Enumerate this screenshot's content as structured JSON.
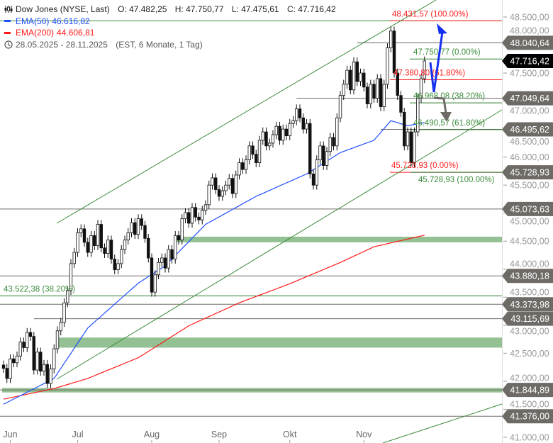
{
  "legend": {
    "instrument": "Dow Jones (NYSE, Last)",
    "open": "O: 47.482,25",
    "high": "H: 47.750,77",
    "low": "L: 47.475,61",
    "close": "C: 47.716,42",
    "ema50_label": "EMA(50)",
    "ema50_value": "46.616,82",
    "ema200_label": "EMA(200)",
    "ema200_value": "44.606,81",
    "range": "28.05.2025 - 28.11.2025",
    "range_info": "(EST, 6 Monate, 1 Tag)",
    "icons": [
      "candlestick-icon",
      "clock-icon"
    ]
  },
  "colors": {
    "ema50": "#1f4fff",
    "ema200": "#ff1a1a",
    "fib_green": "#3c8c3c",
    "fib_red": "#ff2020",
    "zone": "#93c193",
    "level": "#6e6a66",
    "arrow_up": "#1530f0",
    "arrow_down": "#6e6a66"
  },
  "chart_data": {
    "type": "candlestick",
    "ylim": [
      41000,
      48700
    ],
    "grid": false,
    "y_ticks": [
      "48.500,00",
      "48.000,00",
      "47.500,00",
      "47.000,00",
      "46.500,00",
      "46.000,00",
      "45.500,00",
      "45.000,00",
      "44.500,00",
      "44.000,00",
      "43.500,00",
      "43.000,00",
      "42.500,00",
      "42.000,00",
      "41.500,00",
      "41.000,00"
    ],
    "y_tick_values": [
      48500,
      48000,
      47500,
      47000,
      46500,
      46000,
      45500,
      45000,
      44500,
      44000,
      43500,
      43000,
      42500,
      42000,
      41500,
      41000
    ],
    "x_ticks": [
      {
        "label": "Jun",
        "index": 2
      },
      {
        "label": "Jul",
        "index": 22
      },
      {
        "label": "Aug",
        "index": 44
      },
      {
        "label": "Sep",
        "index": 64
      },
      {
        "label": "Okt",
        "index": 85
      },
      {
        "label": "Nov",
        "index": 107
      }
    ],
    "closes": [
      42230,
      42050,
      42400,
      42330,
      42450,
      42700,
      42600,
      42870,
      42800,
      42200,
      42520,
      42180,
      42300,
      41960,
      42220,
      42580,
      42900,
      43050,
      43400,
      43620,
      44100,
      44300,
      44650,
      44720,
      44480,
      44300,
      44600,
      44420,
      44800,
      44380,
      44280,
      44520,
      44180,
      43990,
      44100,
      44350,
      44520,
      44650,
      44830,
      44620,
      44900,
      44780,
      44550,
      44200,
      43590,
      43900,
      44120,
      44200,
      44020,
      44350,
      44180,
      44600,
      44520,
      44900,
      45010,
      44820,
      45100,
      44930,
      44880,
      45050,
      45150,
      45500,
      45630,
      45420,
      45300,
      45400,
      45500,
      45620,
      45350,
      45680,
      45900,
      45780,
      45950,
      46200,
      46050,
      45900,
      46300,
      46450,
      46200,
      46250,
      46400,
      46550,
      46300,
      46500,
      46380,
      46600,
      46650,
      46860,
      46700,
      46500,
      46600,
      45700,
      45500,
      45950,
      46200,
      45850,
      46100,
      46350,
      46200,
      46700,
      47100,
      47300,
      47550,
      47200,
      47700,
      47350,
      47500,
      47250,
      46950,
      47300,
      47050,
      47400,
      46900,
      47300,
      47950,
      48250,
      47500,
      47100,
      46800,
      46200,
      46450,
      45900,
      46450,
      47050,
      47400,
      47716.42
    ],
    "ema50": [
      [
        0,
        41590
      ],
      [
        15,
        42050
      ],
      [
        25,
        42950
      ],
      [
        40,
        43750
      ],
      [
        48,
        44060
      ],
      [
        60,
        44800
      ],
      [
        75,
        45300
      ],
      [
        90,
        45700
      ],
      [
        100,
        46080
      ],
      [
        110,
        46300
      ],
      [
        115,
        46650
      ],
      [
        120,
        46560
      ],
      [
        125,
        46616.82
      ]
    ],
    "ema200": [
      [
        0,
        41680
      ],
      [
        15,
        41870
      ],
      [
        25,
        42050
      ],
      [
        40,
        42420
      ],
      [
        55,
        42990
      ],
      [
        70,
        43400
      ],
      [
        85,
        43740
      ],
      [
        100,
        44120
      ],
      [
        110,
        44400
      ],
      [
        125,
        44606.81
      ]
    ],
    "levels": [
      {
        "value": 48040.64,
        "label": "48.040,64",
        "from": 105
      },
      {
        "value": 47049.64,
        "label": "47.049,64",
        "from": 87
      },
      {
        "value": 46495.62,
        "label": "46.495,62",
        "from": 112
      },
      {
        "value": 45073.63,
        "label": "45.073,63",
        "from": 0
      },
      {
        "value": 43880.18,
        "label": "43.880,18",
        "from": 0
      },
      {
        "value": 43373.98,
        "label": "43.373,98",
        "from": 0
      },
      {
        "value": 43115.69,
        "label": "43.115,69",
        "from": 9
      },
      {
        "value": 41844.89,
        "label": "41.844,89",
        "from": 0
      },
      {
        "value": 41376.0,
        "label": "41.376,00",
        "from": 0
      }
    ],
    "last_price": {
      "value": 47716.42,
      "label": "47.716,42"
    },
    "low_marker": {
      "value": 45728.93,
      "label": "45.728,93"
    },
    "fib_red": [
      {
        "value": 48431.57,
        "label": "48.431,57 (100.00%)"
      },
      {
        "value": 47380.8,
        "label": "47.380,80 (61.80%)"
      },
      {
        "value": 45728.93,
        "label": "45.728,93 (0.00%)"
      }
    ],
    "fib_green": [
      {
        "value": 47750.77,
        "label": "47.750,77 (0.00%)"
      },
      {
        "value": 46968.08,
        "label": "46.968,08 (38.20%)"
      },
      {
        "value": 46490.57,
        "label": "46.490,57 (61.80%)"
      },
      {
        "value": 45728.93,
        "label": "45.728,93 (100.00%)"
      }
    ],
    "fib_green_top": {
      "value": 48431.57
    },
    "fib_left": {
      "value": 43522.38,
      "label": "43.522,38 (38.20%)"
    },
    "zones": [
      [
        44480,
        44580,
        51
      ],
      [
        42600,
        42780,
        16
      ],
      [
        41800,
        41880,
        0
      ]
    ]
  }
}
